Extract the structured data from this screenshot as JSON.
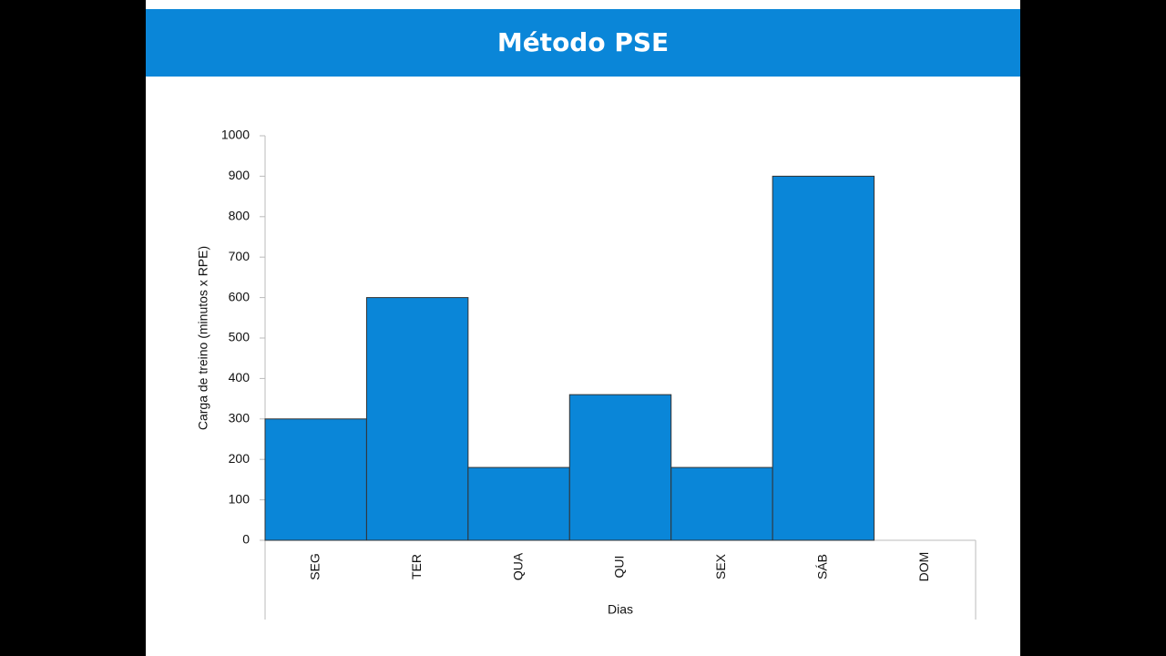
{
  "chart_data": {
    "type": "bar",
    "title": "Método PSE",
    "x_label": "Dias",
    "y_label": "Carga de treino (minutos x RPE)",
    "categories": [
      "SEG",
      "TER",
      "QUA",
      "QUI",
      "SEX",
      "SÁB",
      "DOM"
    ],
    "values": [
      300,
      600,
      180,
      360,
      180,
      900,
      0
    ],
    "color": "#0a86d8",
    "ylim": [
      0,
      1000
    ],
    "yticks": [
      0,
      100,
      200,
      300,
      400,
      500,
      600,
      700,
      800,
      900,
      1000
    ],
    "grid": false
  }
}
